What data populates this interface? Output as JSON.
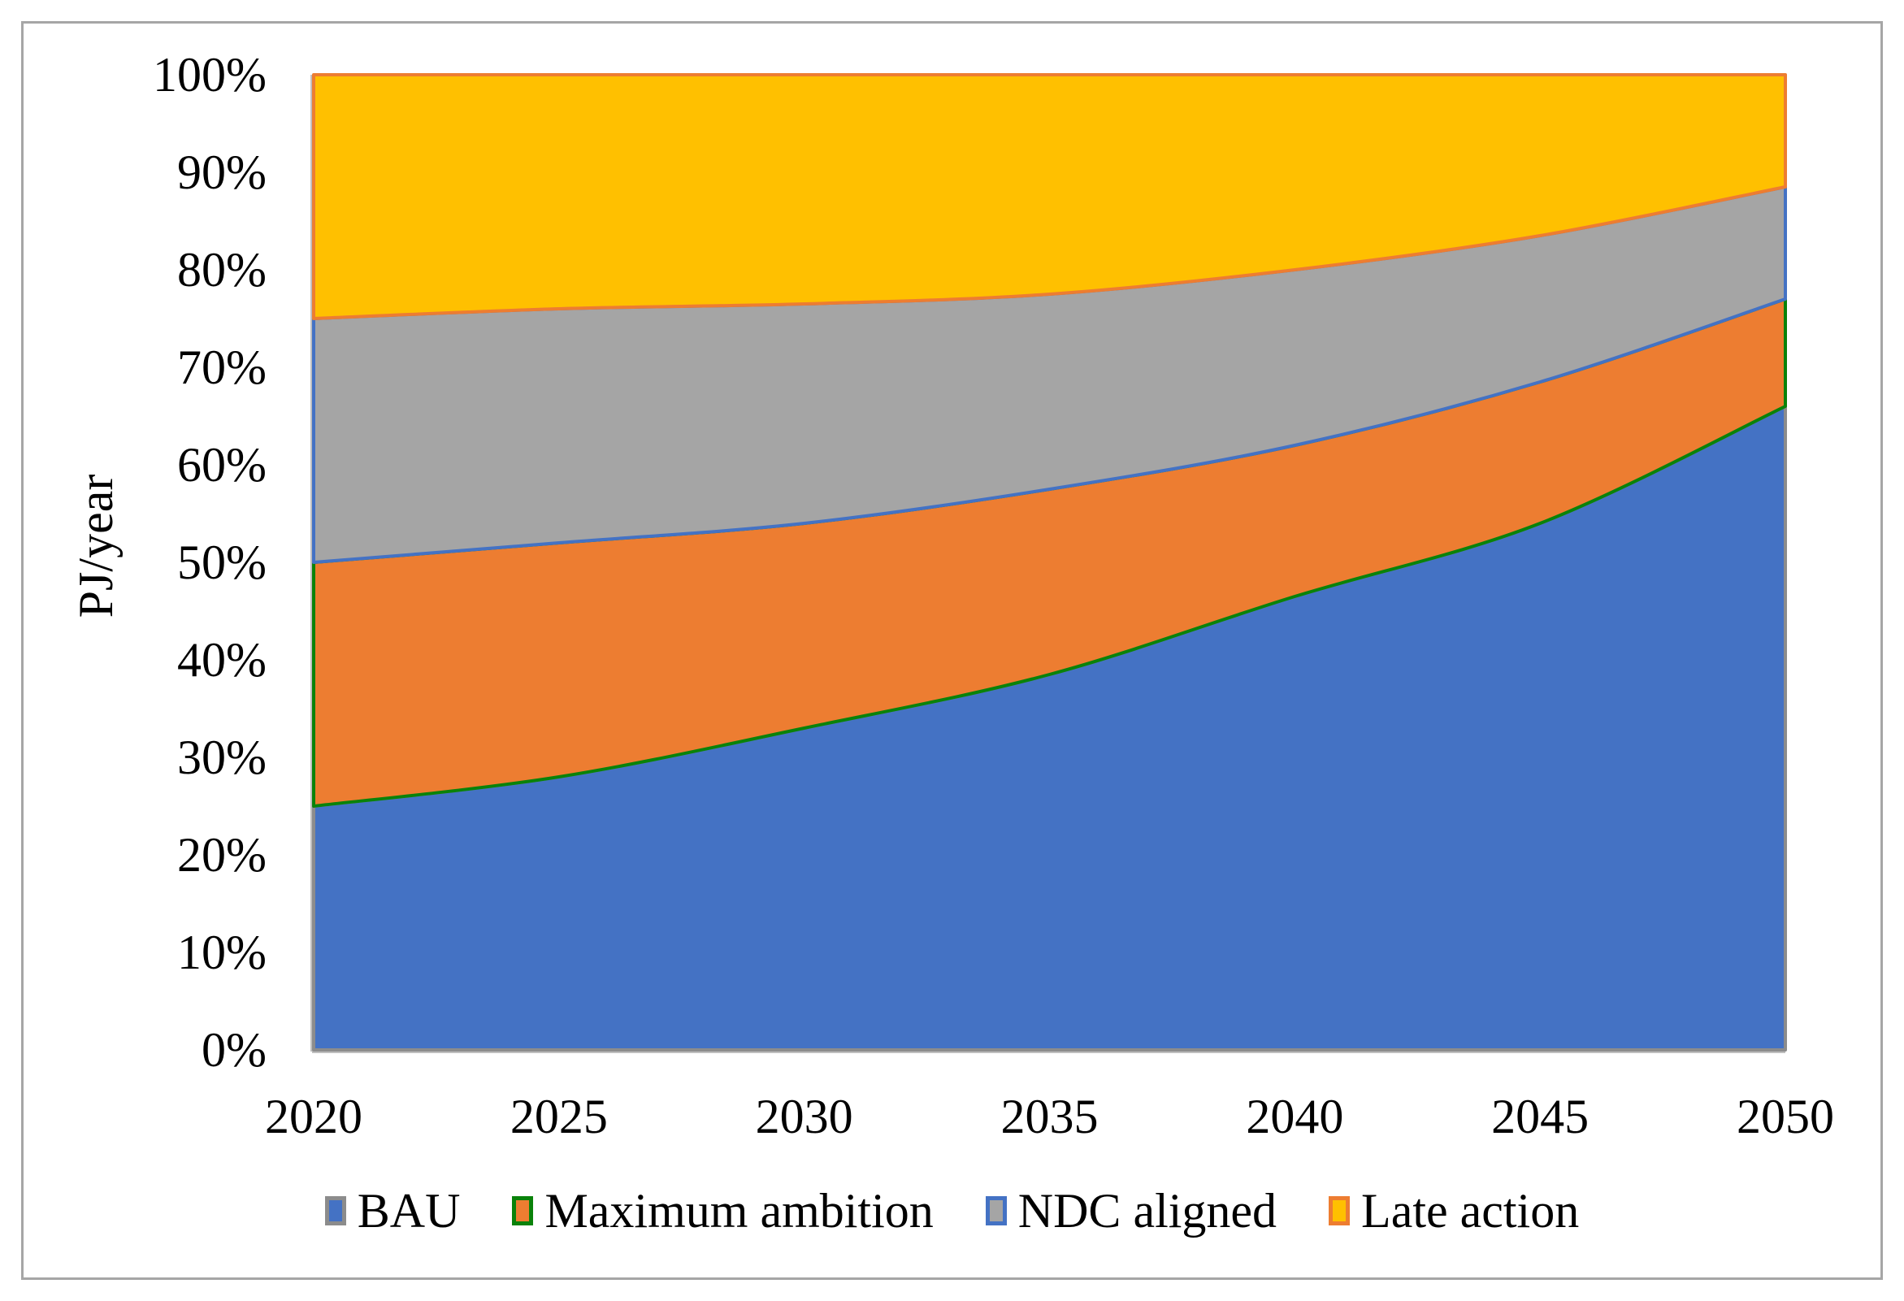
{
  "chart_data": {
    "type": "area",
    "stacking": "percent",
    "title": "",
    "xlabel": "",
    "ylabel": "PJ/year",
    "x": [
      2020,
      2025,
      2030,
      2035,
      2040,
      2045,
      2050
    ],
    "x_tick_labels": [
      "2020",
      "2025",
      "2030",
      "2035",
      "2040",
      "2045",
      "2050"
    ],
    "y_tick_labels": [
      "100%",
      "90%",
      "80%",
      "70%",
      "60%",
      "50%",
      "40%",
      "30%",
      "20%",
      "10%",
      "0%"
    ],
    "ylim": [
      0,
      100
    ],
    "grid": false,
    "legend_position": "bottom",
    "series": [
      {
        "name": "BAU",
        "values": [
          25,
          28,
          33,
          38.5,
          46.5,
          54,
          66
        ],
        "fill": "#4472C4",
        "stroke": "#8c8c8c"
      },
      {
        "name": "Maximum ambition",
        "values": [
          25,
          24,
          21,
          19,
          15.5,
          14.5,
          11
        ],
        "fill": "#ED7D31",
        "stroke": "#0a820a"
      },
      {
        "name": "NDC aligned",
        "values": [
          25,
          24,
          22.5,
          20,
          18,
          15,
          11.5
        ],
        "fill": "#A5A5A5",
        "stroke": "#4472C4"
      },
      {
        "name": "Late action",
        "values": [
          25,
          24,
          23.5,
          22.5,
          20,
          16.5,
          11.5
        ],
        "fill": "#FFC000",
        "stroke": "#ED7D31"
      }
    ],
    "axis_line_color": "#BFBFBF",
    "frame_border_color": "#a6a6a6"
  }
}
